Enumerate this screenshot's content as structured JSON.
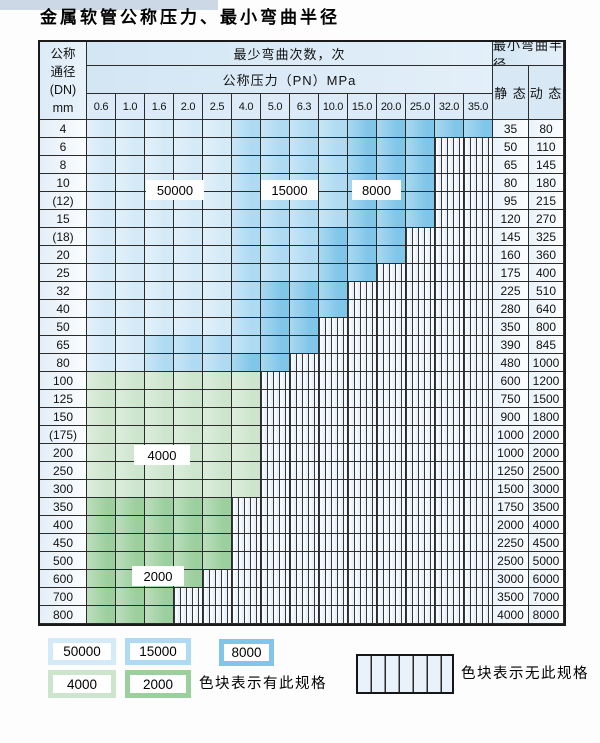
{
  "title": "金属软管公称压力、最小弯曲半径",
  "colors": {
    "blue_50000": "#d4eaf7",
    "blue_15000": "#aedaf2",
    "blue_8000": "#80c6e9",
    "green_4000": "#cde5cd",
    "green_2000": "#9ccf9e",
    "header_fill": "#d8e8f5",
    "grid_line": "#2c2c2c"
  },
  "table": {
    "corner_header": [
      "公称",
      "通径",
      "(DN)",
      "mm"
    ],
    "bend_cycles_header": "最少弯曲次数，次",
    "pressure_header": "公称压力（PN）MPa",
    "radius_header": "最小弯曲半径",
    "static_header": "静 态",
    "dynamic_header": "动 态",
    "pressures": [
      "0.6",
      "1.0",
      "1.6",
      "2.0",
      "2.5",
      "4.0",
      "5.0",
      "6.3",
      "10.0",
      "15.0",
      "20.0",
      "25.0",
      "32.0",
      "35.0"
    ],
    "rows": [
      {
        "dn": "4",
        "static": "35",
        "dynamic": "80",
        "bands": [
          [
            5,
            "blue_50000"
          ],
          [
            9,
            "blue_15000"
          ],
          [
            14,
            "blue_8000"
          ]
        ]
      },
      {
        "dn": "6",
        "static": "50",
        "dynamic": "110",
        "bands": [
          [
            5,
            "blue_50000"
          ],
          [
            9,
            "blue_15000"
          ],
          [
            12,
            "blue_8000"
          ]
        ]
      },
      {
        "dn": "8",
        "static": "65",
        "dynamic": "145",
        "bands": [
          [
            5,
            "blue_50000"
          ],
          [
            9,
            "blue_15000"
          ],
          [
            12,
            "blue_8000"
          ]
        ]
      },
      {
        "dn": "10",
        "static": "80",
        "dynamic": "180",
        "bands": [
          [
            5,
            "blue_50000"
          ],
          [
            9,
            "blue_15000"
          ],
          [
            12,
            "blue_8000"
          ]
        ]
      },
      {
        "dn": "(12)",
        "static": "95",
        "dynamic": "215",
        "bands": [
          [
            5,
            "blue_50000"
          ],
          [
            9,
            "blue_15000"
          ],
          [
            12,
            "blue_8000"
          ]
        ]
      },
      {
        "dn": "15",
        "static": "120",
        "dynamic": "270",
        "bands": [
          [
            5,
            "blue_50000"
          ],
          [
            9,
            "blue_15000"
          ],
          [
            12,
            "blue_8000"
          ]
        ]
      },
      {
        "dn": "(18)",
        "static": "145",
        "dynamic": "325",
        "bands": [
          [
            5,
            "blue_50000"
          ],
          [
            8,
            "blue_15000"
          ],
          [
            11,
            "blue_8000"
          ]
        ]
      },
      {
        "dn": "20",
        "static": "160",
        "dynamic": "360",
        "bands": [
          [
            5,
            "blue_50000"
          ],
          [
            8,
            "blue_15000"
          ],
          [
            11,
            "blue_8000"
          ]
        ]
      },
      {
        "dn": "25",
        "static": "175",
        "dynamic": "400",
        "bands": [
          [
            5,
            "blue_50000"
          ],
          [
            8,
            "blue_15000"
          ],
          [
            10,
            "blue_8000"
          ]
        ]
      },
      {
        "dn": "32",
        "static": "225",
        "dynamic": "510",
        "bands": [
          [
            5,
            "blue_50000"
          ],
          [
            6,
            "blue_15000"
          ],
          [
            9,
            "blue_8000"
          ]
        ]
      },
      {
        "dn": "40",
        "static": "280",
        "dynamic": "640",
        "bands": [
          [
            5,
            "blue_50000"
          ],
          [
            6,
            "blue_15000"
          ],
          [
            9,
            "blue_8000"
          ]
        ]
      },
      {
        "dn": "50",
        "static": "350",
        "dynamic": "800",
        "bands": [
          [
            5,
            "blue_50000"
          ],
          [
            6,
            "blue_15000"
          ],
          [
            8,
            "blue_8000"
          ]
        ]
      },
      {
        "dn": "65",
        "static": "390",
        "dynamic": "845",
        "bands": [
          [
            2,
            "blue_50000"
          ],
          [
            6,
            "blue_15000"
          ],
          [
            8,
            "blue_8000"
          ]
        ]
      },
      {
        "dn": "80",
        "static": "480",
        "dynamic": "1000",
        "bands": [
          [
            2,
            "blue_50000"
          ],
          [
            5,
            "blue_15000"
          ],
          [
            7,
            "blue_8000"
          ]
        ]
      },
      {
        "dn": "100",
        "static": "600",
        "dynamic": "1200",
        "bands": [
          [
            6,
            "green_4000"
          ]
        ]
      },
      {
        "dn": "125",
        "static": "750",
        "dynamic": "1500",
        "bands": [
          [
            6,
            "green_4000"
          ]
        ]
      },
      {
        "dn": "150",
        "static": "900",
        "dynamic": "1800",
        "bands": [
          [
            6,
            "green_4000"
          ]
        ]
      },
      {
        "dn": "(175)",
        "static": "1000",
        "dynamic": "2000",
        "bands": [
          [
            6,
            "green_4000"
          ]
        ]
      },
      {
        "dn": "200",
        "static": "1000",
        "dynamic": "2000",
        "bands": [
          [
            6,
            "green_4000"
          ]
        ]
      },
      {
        "dn": "250",
        "static": "1250",
        "dynamic": "2500",
        "bands": [
          [
            6,
            "green_4000"
          ]
        ]
      },
      {
        "dn": "300",
        "static": "1500",
        "dynamic": "3000",
        "bands": [
          [
            6,
            "green_4000"
          ]
        ]
      },
      {
        "dn": "350",
        "static": "1750",
        "dynamic": "3500",
        "bands": [
          [
            5,
            "green_2000"
          ]
        ]
      },
      {
        "dn": "400",
        "static": "2000",
        "dynamic": "4000",
        "bands": [
          [
            5,
            "green_2000"
          ]
        ]
      },
      {
        "dn": "450",
        "static": "2250",
        "dynamic": "4500",
        "bands": [
          [
            5,
            "green_2000"
          ]
        ]
      },
      {
        "dn": "500",
        "static": "2500",
        "dynamic": "5000",
        "bands": [
          [
            5,
            "green_2000"
          ]
        ]
      },
      {
        "dn": "600",
        "static": "3000",
        "dynamic": "6000",
        "bands": [
          [
            4,
            "green_2000"
          ]
        ]
      },
      {
        "dn": "700",
        "static": "3500",
        "dynamic": "7000",
        "bands": [
          [
            3,
            "green_2000"
          ]
        ]
      },
      {
        "dn": "800",
        "static": "4000",
        "dynamic": "8000",
        "bands": [
          [
            3,
            "green_2000"
          ]
        ]
      }
    ]
  },
  "overlay_labels": [
    "50000",
    "15000",
    "8000",
    "4000",
    "2000"
  ],
  "legend": {
    "items": [
      {
        "label": "50000",
        "color": "blue_50000"
      },
      {
        "label": "15000",
        "color": "blue_15000"
      },
      {
        "label": "8000",
        "color": "blue_8000"
      },
      {
        "label": "4000",
        "color": "green_4000"
      },
      {
        "label": "2000",
        "color": "green_2000"
      }
    ],
    "has_spec_note": "色块表示有此规格",
    "no_spec_note": "色块表示无此规格"
  }
}
